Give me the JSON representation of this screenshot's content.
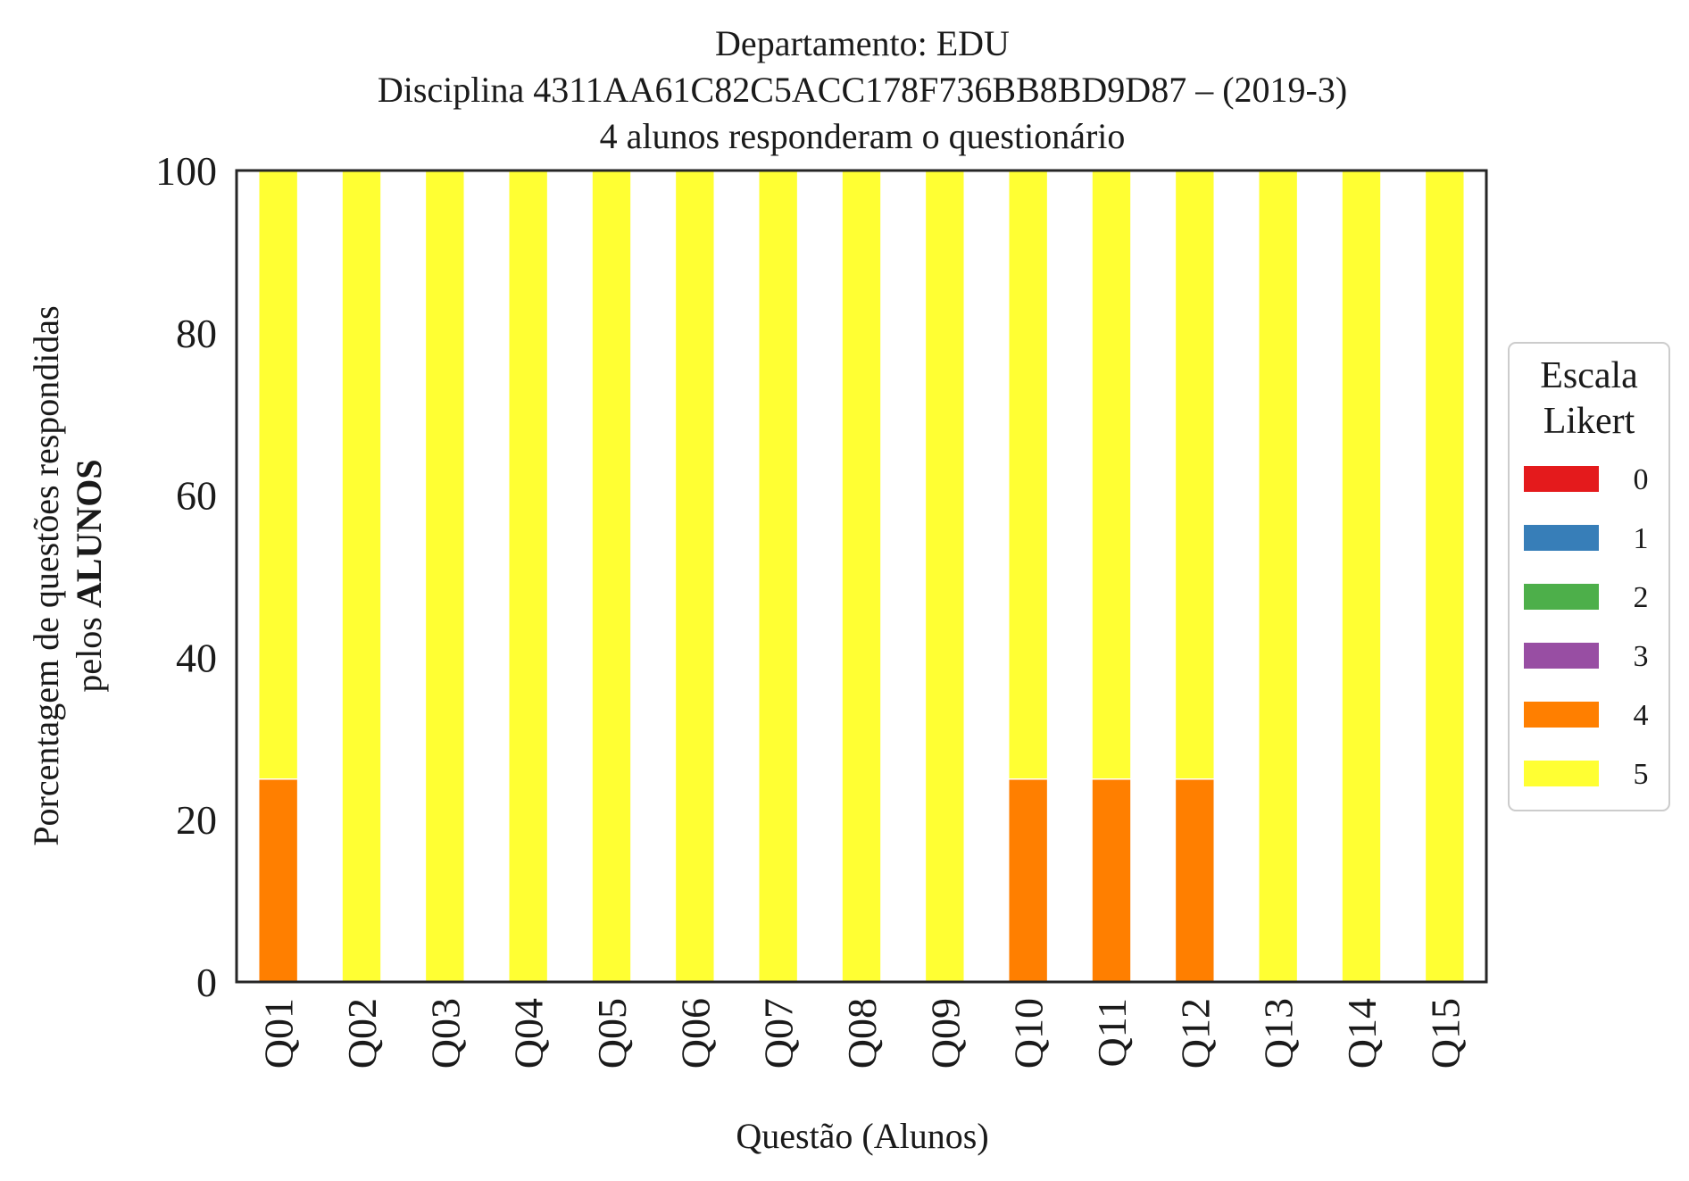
{
  "chart_data": {
    "type": "bar",
    "stacked": true,
    "title_lines": [
      "Departamento: EDU",
      "Disciplina 4311AA61C82C5ACC178F736BB8BD9D87 – (2019-3)",
      "4 alunos responderam o questionário"
    ],
    "xlabel": "Questão (Alunos)",
    "ylabel_line1": "Porcentagem de questões respondidas",
    "ylabel_line2_prefix": "pelos ",
    "ylabel_line2_bold": "ALUNOS",
    "ylim": [
      0,
      100
    ],
    "yticks": [
      "0",
      "20",
      "40",
      "60",
      "80",
      "100"
    ],
    "grid": false,
    "legend_position": "right",
    "legend_title_lines": [
      "Escala",
      "Likert"
    ],
    "categories": [
      "Q01",
      "Q02",
      "Q03",
      "Q04",
      "Q05",
      "Q06",
      "Q07",
      "Q08",
      "Q09",
      "Q10",
      "Q11",
      "Q12",
      "Q13",
      "Q14",
      "Q15"
    ],
    "series": [
      {
        "name": "0",
        "color": "#e41a1c",
        "values": [
          0,
          0,
          0,
          0,
          0,
          0,
          0,
          0,
          0,
          0,
          0,
          0,
          0,
          0,
          0
        ]
      },
      {
        "name": "1",
        "color": "#377eb8",
        "values": [
          0,
          0,
          0,
          0,
          0,
          0,
          0,
          0,
          0,
          0,
          0,
          0,
          0,
          0,
          0
        ]
      },
      {
        "name": "2",
        "color": "#4daf4a",
        "values": [
          0,
          0,
          0,
          0,
          0,
          0,
          0,
          0,
          0,
          0,
          0,
          0,
          0,
          0,
          0
        ]
      },
      {
        "name": "3",
        "color": "#984ea3",
        "values": [
          0,
          0,
          0,
          0,
          0,
          0,
          0,
          0,
          0,
          0,
          0,
          0,
          0,
          0,
          0
        ]
      },
      {
        "name": "4",
        "color": "#ff7f00",
        "values": [
          25,
          0,
          0,
          0,
          0,
          0,
          0,
          0,
          0,
          25,
          25,
          25,
          0,
          0,
          0
        ]
      },
      {
        "name": "5",
        "color": "#ffff33",
        "values": [
          75,
          100,
          100,
          100,
          100,
          100,
          100,
          100,
          100,
          75,
          75,
          75,
          100,
          100,
          100
        ]
      }
    ]
  }
}
